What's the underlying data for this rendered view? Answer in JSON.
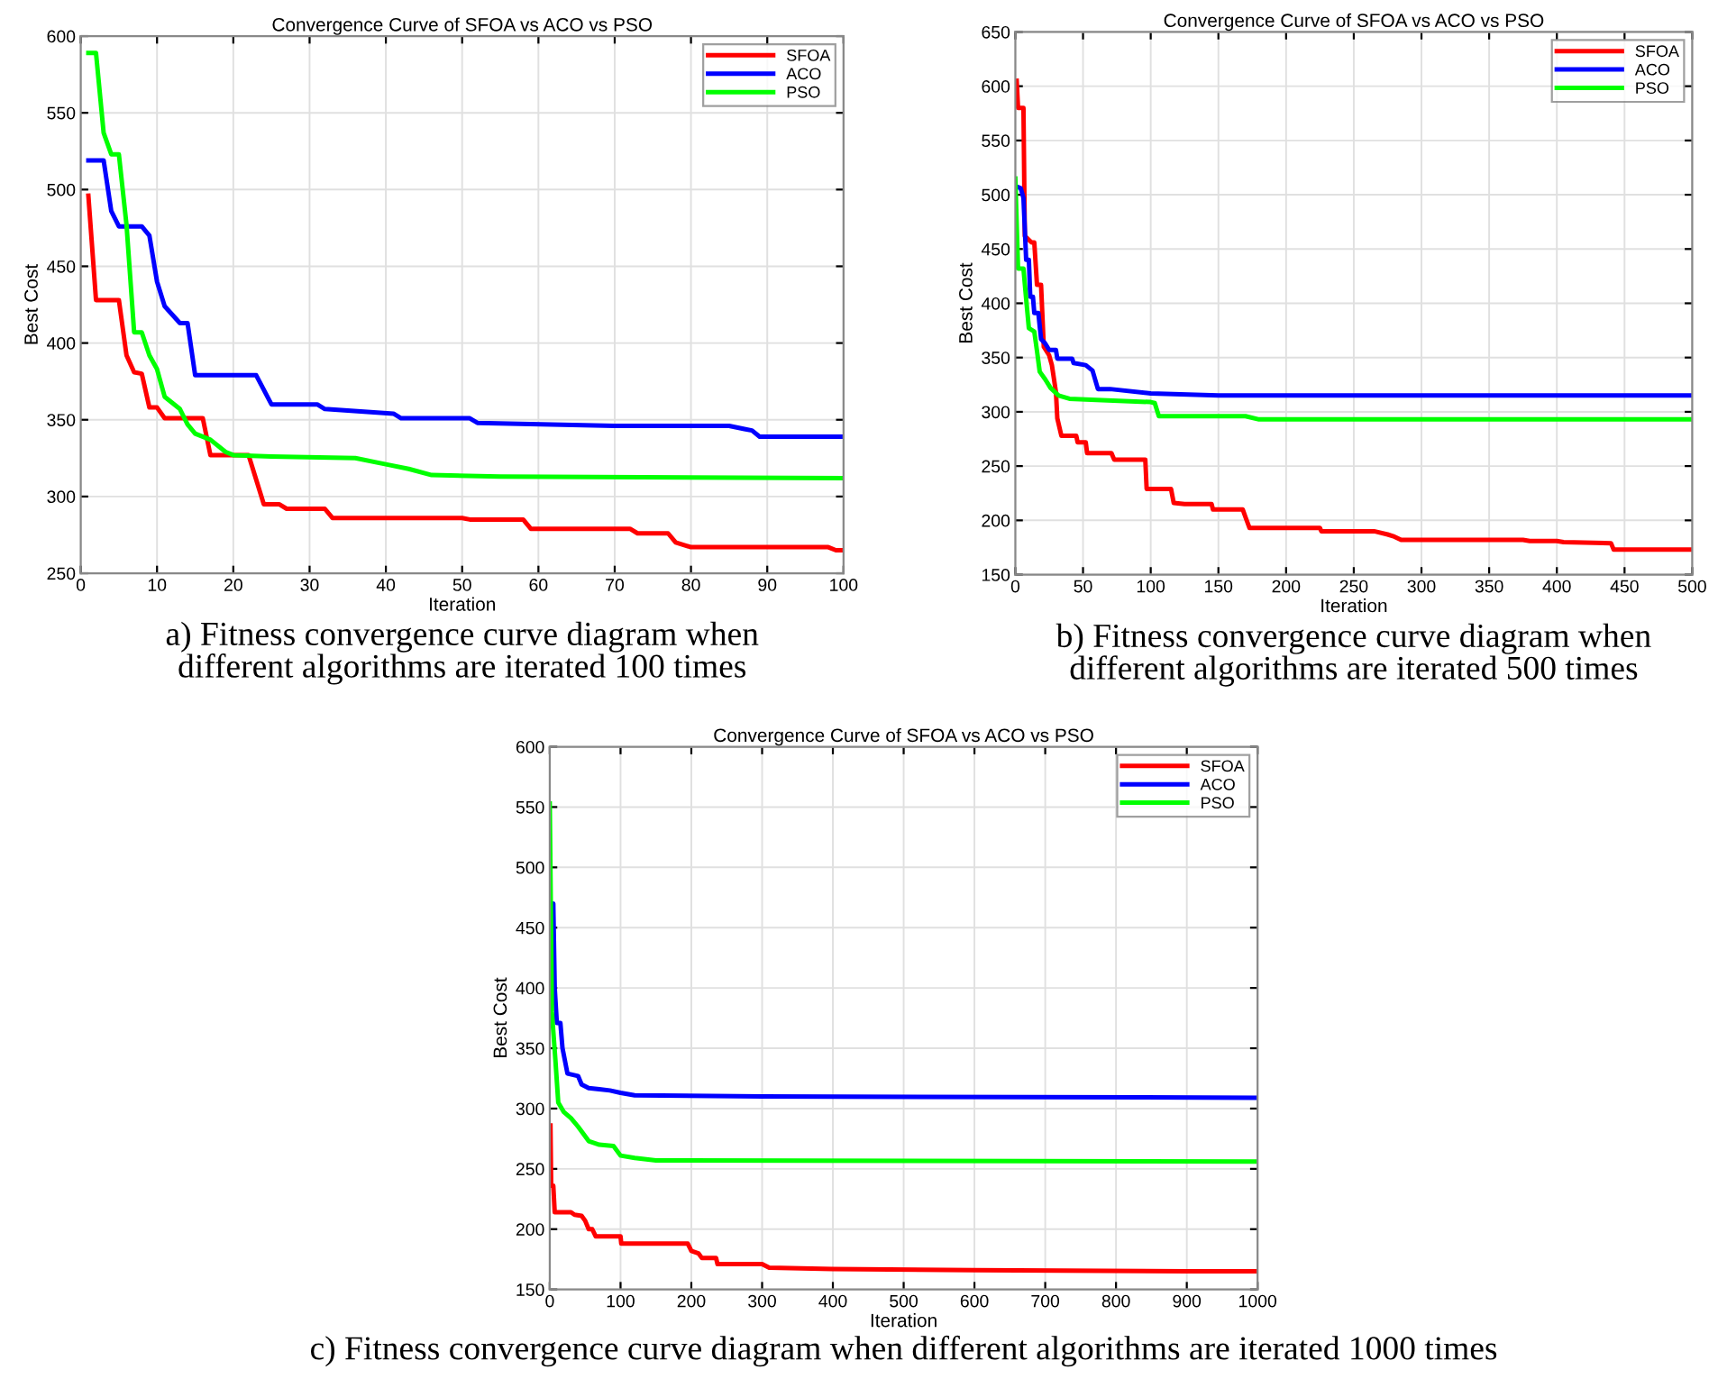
{
  "chart_data": [
    {
      "type": "line",
      "title": "Convergence Curve of SFOA vs ACO vs PSO",
      "xlabel": "Iteration",
      "ylabel": "Best Cost",
      "xlim": [
        0,
        100
      ],
      "xticks": [
        0,
        10,
        20,
        30,
        40,
        50,
        60,
        70,
        80,
        90,
        100
      ],
      "ylim": [
        250,
        600
      ],
      "yticks": [
        250,
        300,
        350,
        400,
        450,
        500,
        550,
        600
      ],
      "grid": true,
      "legend": "top right",
      "line_style": "solid",
      "annotations": [
        "a) Fitness convergence curve diagram when\ndifferent algorithms are iterated 100 times"
      ],
      "series": [
        {
          "name": "SFOA",
          "color": "#ff0000",
          "x": [
            1,
            2,
            5,
            6,
            7,
            8,
            9,
            10,
            11,
            16,
            17,
            22,
            24,
            26,
            27,
            32,
            33,
            50,
            51,
            58,
            59,
            72,
            73,
            77,
            78,
            80,
            98,
            99,
            100
          ],
          "values": [
            496,
            428,
            428,
            392,
            381,
            380,
            358,
            358,
            351,
            351,
            327,
            327,
            295,
            295,
            292,
            292,
            286,
            286,
            285,
            285,
            279,
            279,
            276,
            276,
            270,
            267,
            267,
            265,
            265
          ]
        },
        {
          "name": "ACO",
          "color": "#0000ff",
          "x": [
            1,
            3,
            4,
            5,
            8,
            9,
            10,
            11,
            13,
            14,
            15,
            23,
            25,
            31,
            32,
            35,
            38,
            41,
            42,
            51,
            52,
            70,
            85,
            87,
            88,
            89,
            100
          ],
          "values": [
            519,
            519,
            486,
            476,
            476,
            470,
            440,
            424,
            413,
            413,
            379,
            379,
            360,
            360,
            357,
            356,
            355,
            354,
            351,
            351,
            348,
            346,
            346,
            344,
            343,
            339,
            339
          ]
        },
        {
          "name": "PSO",
          "color": "#00ff00",
          "x": [
            1,
            2,
            3,
            4,
            5,
            6,
            7,
            8,
            9,
            10,
            11,
            13,
            14,
            15,
            17,
            19,
            20,
            25,
            36,
            40,
            43,
            46,
            55,
            100
          ],
          "values": [
            589,
            589,
            537,
            523,
            523,
            477,
            407,
            407,
            392,
            383,
            365,
            357,
            347,
            341,
            337,
            329,
            327,
            326,
            325,
            321,
            318,
            314,
            313,
            312
          ]
        }
      ]
    },
    {
      "type": "line",
      "title": "Convergence Curve of SFOA vs ACO vs PSO",
      "xlabel": "Iteration",
      "ylabel": "Best Cost",
      "xlim": [
        0,
        500
      ],
      "xticks": [
        0,
        50,
        100,
        150,
        200,
        250,
        300,
        350,
        400,
        450,
        500
      ],
      "ylim": [
        150,
        650
      ],
      "yticks": [
        150,
        200,
        250,
        300,
        350,
        400,
        450,
        500,
        550,
        600,
        650
      ],
      "grid": true,
      "legend": "top right",
      "line_style": "solid",
      "annotations": [
        "b) Fitness convergence curve diagram when\ndifferent algorithms are iterated 500 times"
      ],
      "series": [
        {
          "name": "SFOA",
          "color": "#ff0000",
          "x": [
            1,
            2,
            6,
            7,
            12,
            14,
            16,
            19,
            21,
            25,
            27,
            30,
            31,
            34,
            45,
            46,
            52,
            53,
            71,
            73,
            96,
            97,
            115,
            117,
            125,
            145,
            146,
            168,
            170,
            173,
            225,
            226,
            265,
            275,
            280,
            285,
            375,
            380,
            400,
            405,
            440,
            442,
            500
          ],
          "values": [
            605,
            580,
            580,
            462,
            456,
            456,
            417,
            417,
            360,
            352,
            343,
            318,
            294,
            278,
            278,
            272,
            272,
            262,
            262,
            256,
            256,
            229,
            229,
            216,
            215,
            215,
            210,
            210,
            203,
            193,
            193,
            190,
            190,
            187,
            185,
            182,
            182,
            181,
            181,
            180,
            179,
            173,
            173
          ]
        },
        {
          "name": "ACO",
          "color": "#0000ff",
          "x": [
            2,
            4,
            6,
            8,
            10,
            11,
            13,
            14,
            17,
            19,
            22,
            25,
            30,
            31,
            42,
            43,
            52,
            57,
            61,
            70,
            100,
            150,
            500
          ],
          "values": [
            507,
            506,
            497,
            440,
            440,
            406,
            406,
            391,
            391,
            367,
            363,
            357,
            357,
            349,
            349,
            345,
            343,
            338,
            321,
            321,
            317,
            315,
            315
          ]
        },
        {
          "name": "PSO",
          "color": "#00ff00",
          "x": [
            0,
            2,
            6,
            8,
            10,
            14,
            16,
            18,
            22,
            26,
            32,
            40,
            60,
            100,
            103,
            106,
            170,
            180,
            500
          ],
          "values": [
            515,
            432,
            432,
            404,
            377,
            374,
            356,
            337,
            330,
            322,
            315,
            312,
            311,
            309,
            308,
            296,
            296,
            293,
            293
          ]
        }
      ]
    },
    {
      "type": "line",
      "title": "Convergence Curve of SFOA vs ACO vs PSO",
      "xlabel": "Iteration",
      "ylabel": "Best Cost",
      "xlim": [
        0,
        1000
      ],
      "xticks": [
        0,
        100,
        200,
        300,
        400,
        500,
        600,
        700,
        800,
        900,
        1000
      ],
      "ylim": [
        150,
        600
      ],
      "yticks": [
        150,
        200,
        250,
        300,
        350,
        400,
        450,
        500,
        550,
        600
      ],
      "grid": true,
      "legend": "top right",
      "line_style": "solid",
      "annotations": [
        "c) Fitness convergence curve diagram when different algorithms are iterated 1000 times"
      ],
      "series": [
        {
          "name": "SFOA",
          "color": "#ff0000",
          "x": [
            1,
            2,
            5,
            7,
            30,
            35,
            45,
            50,
            55,
            60,
            65,
            100,
            101,
            195,
            200,
            210,
            215,
            235,
            237,
            300,
            310,
            400,
            600,
            900,
            1000
          ],
          "values": [
            286,
            236,
            236,
            214,
            214,
            212,
            211,
            207,
            200,
            200,
            194,
            194,
            188,
            188,
            182,
            180,
            176,
            176,
            171,
            171,
            168,
            167,
            166,
            165,
            165
          ]
        },
        {
          "name": "ACO",
          "color": "#0000ff",
          "x": [
            1,
            5,
            7,
            10,
            15,
            18,
            25,
            40,
            45,
            55,
            70,
            85,
            100,
            120,
            300,
            1000
          ],
          "values": [
            400,
            470,
            400,
            371,
            371,
            350,
            329,
            327,
            320,
            317,
            316,
            315,
            313,
            311,
            310,
            309
          ]
        },
        {
          "name": "PSO",
          "color": "#00ff00",
          "x": [
            0,
            3,
            8,
            12,
            20,
            30,
            40,
            55,
            70,
            90,
            100,
            120,
            150,
            1000
          ],
          "values": [
            553,
            380,
            340,
            305,
            297,
            292,
            285,
            273,
            270,
            269,
            261,
            259,
            257,
            256
          ]
        }
      ]
    }
  ]
}
